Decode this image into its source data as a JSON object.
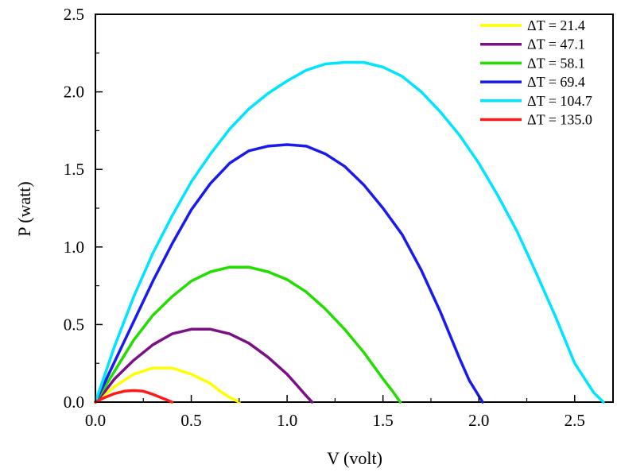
{
  "chart_data": {
    "type": "line",
    "title": "",
    "xlabel": "V (volt)",
    "ylabel": "P (watt)",
    "xlim": [
      0,
      2.7
    ],
    "ylim": [
      0,
      2.5
    ],
    "xticks": [
      "0.0",
      "0.5",
      "1.0",
      "1.5",
      "2.0",
      "2.5"
    ],
    "yticks": [
      "0.0",
      "0.5",
      "1.0",
      "1.5",
      "2.0",
      "2.5"
    ],
    "grid": false,
    "legend_position": "top-right",
    "series": [
      {
        "name": "ΔT = 21.4",
        "color": "#ffff00",
        "x": [
          0.0,
          0.05,
          0.1,
          0.15,
          0.2,
          0.25,
          0.3,
          0.35,
          0.4,
          0.45,
          0.5,
          0.55,
          0.6,
          0.65,
          0.7,
          0.75
        ],
        "y": [
          0.0,
          0.05,
          0.1,
          0.14,
          0.18,
          0.2,
          0.22,
          0.22,
          0.22,
          0.2,
          0.18,
          0.15,
          0.12,
          0.07,
          0.03,
          0.0
        ]
      },
      {
        "name": "ΔT = 47.1",
        "color": "#7b0f85",
        "x": [
          0.0,
          0.05,
          0.1,
          0.2,
          0.3,
          0.4,
          0.5,
          0.55,
          0.6,
          0.7,
          0.8,
          0.9,
          1.0,
          1.05,
          1.1,
          1.13
        ],
        "y": [
          0.0,
          0.07,
          0.15,
          0.27,
          0.37,
          0.44,
          0.47,
          0.47,
          0.47,
          0.44,
          0.38,
          0.29,
          0.18,
          0.11,
          0.04,
          0.0
        ]
      },
      {
        "name": "ΔT = 58.1",
        "color": "#22dd00",
        "x": [
          0.0,
          0.05,
          0.1,
          0.2,
          0.3,
          0.4,
          0.5,
          0.6,
          0.7,
          0.8,
          0.9,
          1.0,
          1.1,
          1.2,
          1.3,
          1.4,
          1.5,
          1.55,
          1.59
        ],
        "y": [
          0.0,
          0.1,
          0.2,
          0.4,
          0.56,
          0.68,
          0.78,
          0.84,
          0.87,
          0.87,
          0.84,
          0.79,
          0.71,
          0.6,
          0.47,
          0.32,
          0.15,
          0.07,
          0.0
        ]
      },
      {
        "name": "ΔT = 69.4",
        "color": "#1a1aee",
        "x": [
          0.0,
          0.1,
          0.2,
          0.3,
          0.4,
          0.5,
          0.6,
          0.7,
          0.8,
          0.9,
          1.0,
          1.1,
          1.2,
          1.3,
          1.4,
          1.5,
          1.6,
          1.7,
          1.8,
          1.9,
          1.95,
          2.02
        ],
        "y": [
          0.0,
          0.26,
          0.52,
          0.78,
          1.02,
          1.24,
          1.41,
          1.54,
          1.62,
          1.65,
          1.66,
          1.65,
          1.6,
          1.52,
          1.4,
          1.25,
          1.08,
          0.85,
          0.58,
          0.28,
          0.14,
          0.0
        ]
      },
      {
        "name": "ΔT = 104.7",
        "color": "#00e5ff",
        "x": [
          0.0,
          0.1,
          0.2,
          0.3,
          0.4,
          0.5,
          0.6,
          0.7,
          0.8,
          0.9,
          1.0,
          1.1,
          1.2,
          1.3,
          1.4,
          1.5,
          1.6,
          1.7,
          1.8,
          1.9,
          2.0,
          2.1,
          2.2,
          2.3,
          2.4,
          2.5,
          2.6,
          2.65
        ],
        "y": [
          0.0,
          0.36,
          0.68,
          0.96,
          1.2,
          1.42,
          1.6,
          1.76,
          1.89,
          1.99,
          2.07,
          2.14,
          2.18,
          2.19,
          2.19,
          2.16,
          2.1,
          2.0,
          1.87,
          1.72,
          1.54,
          1.33,
          1.1,
          0.83,
          0.55,
          0.25,
          0.06,
          0.0
        ]
      },
      {
        "name": "ΔT = 135.0",
        "color": "#ff1a1a",
        "x": [
          0.0,
          0.05,
          0.1,
          0.15,
          0.2,
          0.25,
          0.3,
          0.35,
          0.4
        ],
        "y": [
          0.0,
          0.03,
          0.055,
          0.07,
          0.075,
          0.07,
          0.05,
          0.025,
          0.0
        ]
      }
    ]
  }
}
